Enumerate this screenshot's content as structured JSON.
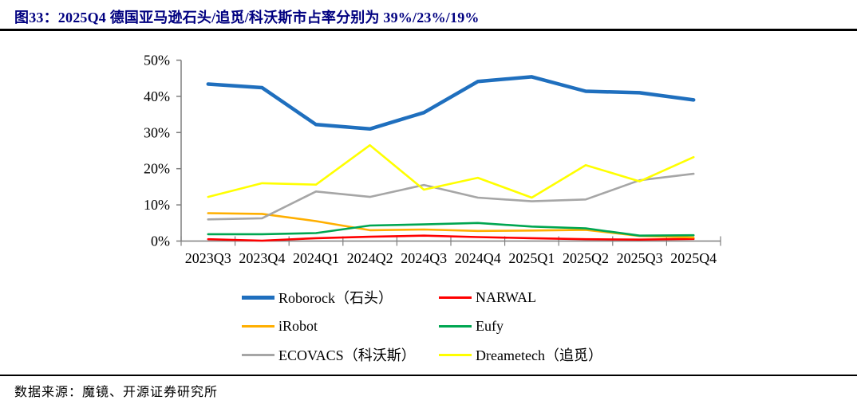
{
  "header": {
    "title": "图33：2025Q4 德国亚马逊石头/追觅/科沃斯市占率分别为 39%/23%/19%"
  },
  "footer": {
    "source": "数据来源：魔镜、开源证券研究所"
  },
  "colors": {
    "title_text": "#000080",
    "axis": "#7f7f7f",
    "label_text": "#000000",
    "roborock_blue": "#1f6fbe",
    "narwal_red": "#ff0000",
    "irobot_orange": "#ffaf00",
    "eufy_green": "#00a651",
    "ecovacs_gray": "#a6a6a6",
    "dreametech_yellow": "#ffff00"
  },
  "chart_data": {
    "type": "line",
    "title": "2025Q4 德国亚马逊石头/追觅/科沃斯市占率分别为 39%/23%/19%",
    "categories": [
      "2023Q3",
      "2023Q4",
      "2024Q1",
      "2024Q2",
      "2024Q3",
      "2024Q4",
      "2025Q1",
      "2025Q2",
      "2025Q3",
      "2025Q4"
    ],
    "series": [
      {
        "name": "Roborock（石头）",
        "color": "#1f6fbe",
        "line_weight": "thick",
        "values": [
          43.4,
          42.4,
          32.2,
          31.0,
          35.5,
          44.1,
          45.4,
          41.4,
          41.0,
          39.0
        ]
      },
      {
        "name": "NARWAL",
        "color": "#ff0000",
        "line_weight": "normal",
        "values": [
          0.5,
          0.1,
          0.8,
          1.2,
          1.5,
          1.1,
          0.8,
          0.5,
          0.4,
          0.6
        ]
      },
      {
        "name": "iRobot",
        "color": "#ffaf00",
        "line_weight": "normal",
        "values": [
          7.7,
          7.5,
          5.5,
          3.0,
          3.2,
          2.8,
          2.9,
          3.1,
          1.4,
          1.0
        ]
      },
      {
        "name": "Eufy",
        "color": "#00a651",
        "line_weight": "normal",
        "values": [
          1.9,
          1.9,
          2.2,
          4.3,
          4.6,
          5.0,
          4.0,
          3.5,
          1.5,
          1.6
        ]
      },
      {
        "name": "ECOVACS（科沃斯）",
        "color": "#a6a6a6",
        "line_weight": "normal",
        "values": [
          6.0,
          6.3,
          13.7,
          12.2,
          15.5,
          12.0,
          11.0,
          11.5,
          16.8,
          18.6
        ]
      },
      {
        "name": "Dreametech（追觅）",
        "color": "#ffff00",
        "line_weight": "normal",
        "values": [
          12.2,
          16.0,
          15.6,
          26.5,
          14.2,
          17.5,
          12.0,
          21.0,
          16.5,
          23.2
        ]
      }
    ],
    "xlabel": "",
    "ylabel": "",
    "ylim": [
      0,
      50
    ],
    "ytick_labels": [
      "0%",
      "10%",
      "20%",
      "30%",
      "40%",
      "50%"
    ],
    "grid": false,
    "markers": false,
    "legend_position": "bottom"
  },
  "legend": {
    "rows": [
      [
        0,
        1
      ],
      [
        2,
        3
      ],
      [
        4,
        5
      ]
    ]
  }
}
